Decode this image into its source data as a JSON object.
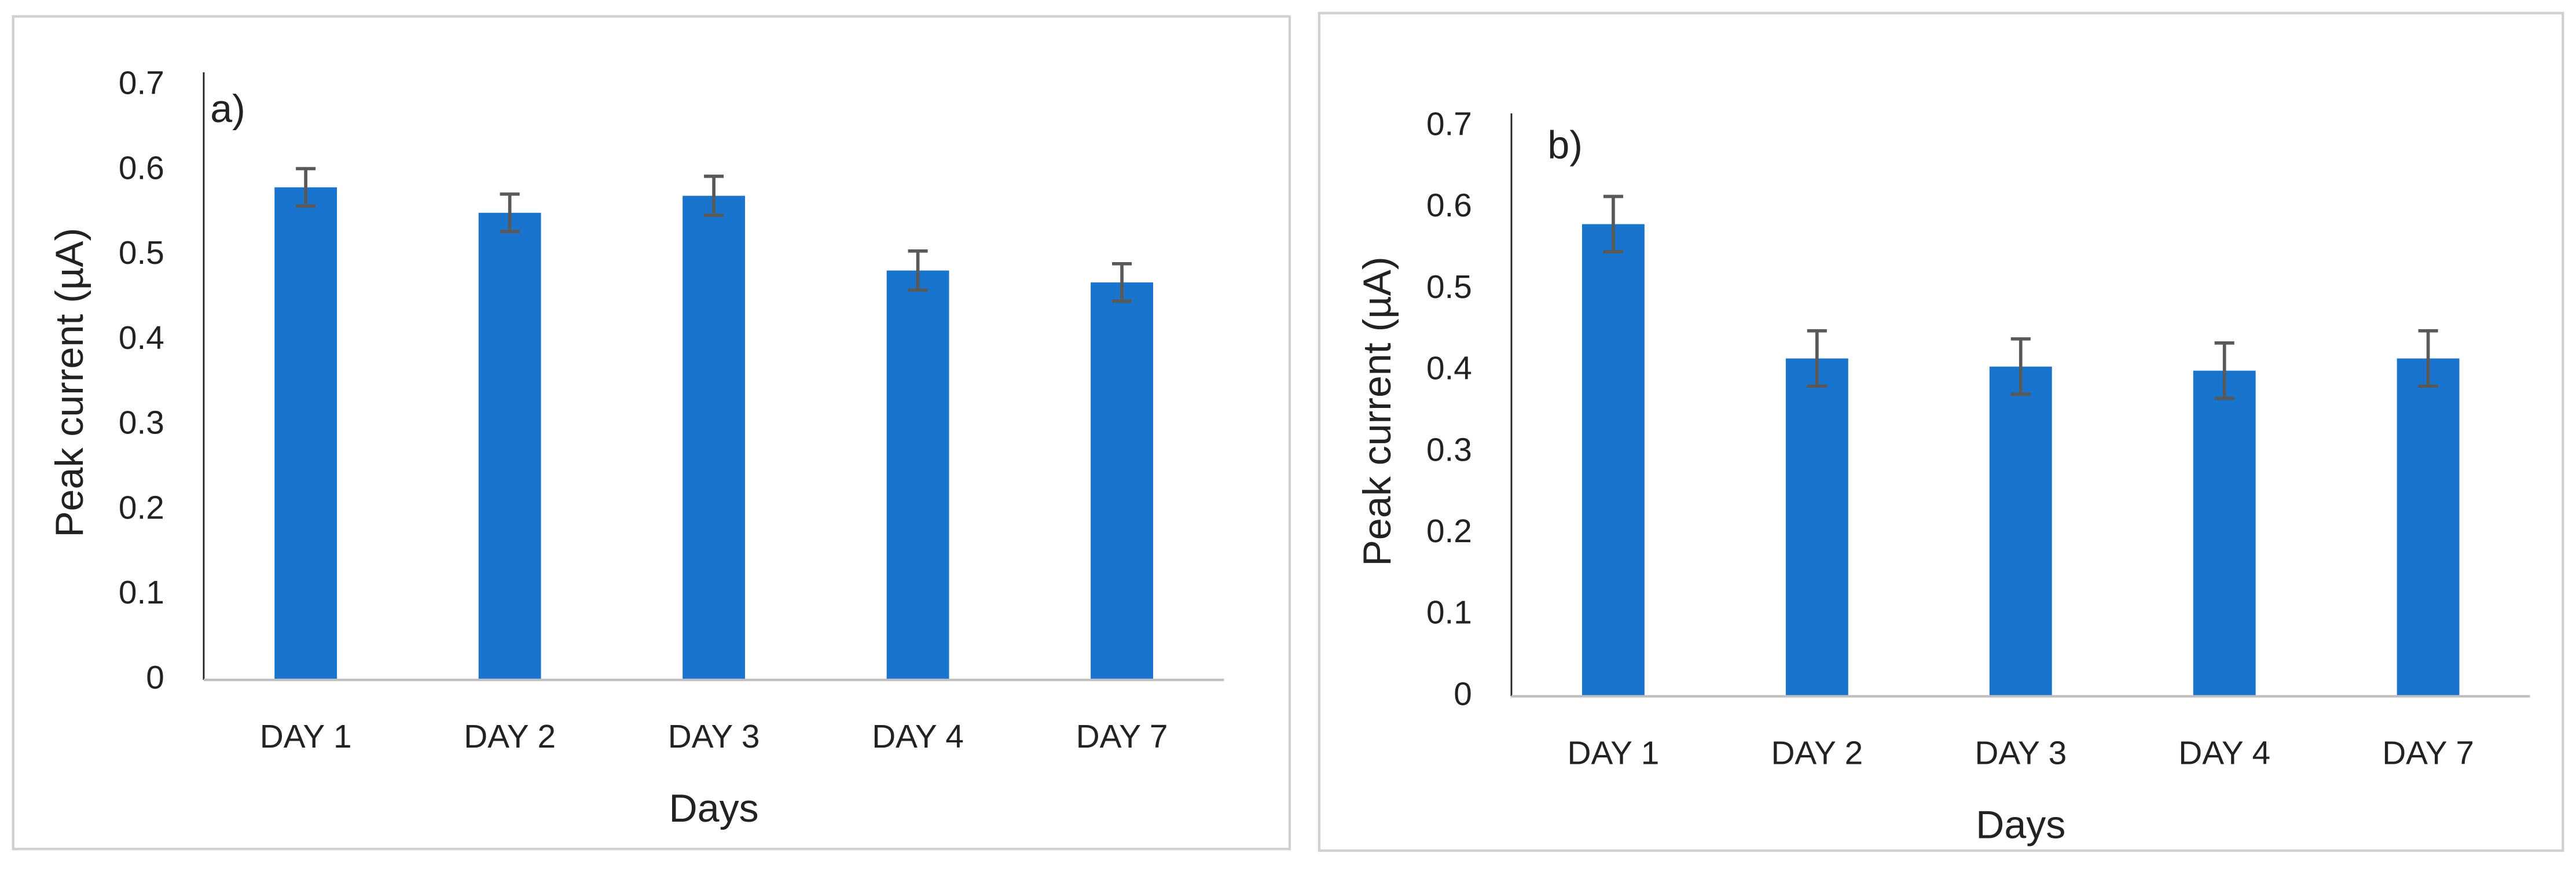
{
  "chart_data": [
    {
      "type": "bar",
      "annotation": "a)",
      "xlabel": "Days",
      "ylabel": "Peak current (µA)",
      "categories": [
        "DAY 1",
        "DAY 2",
        "DAY 3",
        "DAY 4",
        "DAY 7"
      ],
      "values": [
        0.58,
        0.55,
        0.57,
        0.482,
        0.468
      ],
      "errors": [
        0.022,
        0.022,
        0.023,
        0.023,
        0.022
      ],
      "color": "#1874cd",
      "error_color": "#595959",
      "ylim": [
        0,
        0.7
      ],
      "yticks": [
        0,
        0.1,
        0.2,
        0.3,
        0.4,
        0.5,
        0.6,
        0.7
      ],
      "grid": false
    },
    {
      "type": "bar",
      "annotation": "b)",
      "xlabel": "Days",
      "ylabel": "Peak current (µA)",
      "categories": [
        "DAY 1",
        "DAY 2",
        "DAY 3",
        "DAY 4",
        "DAY 7"
      ],
      "values": [
        0.58,
        0.415,
        0.405,
        0.4,
        0.415
      ],
      "errors": [
        0.034,
        0.034,
        0.034,
        0.034,
        0.034
      ],
      "color": "#1874cd",
      "error_color": "#595959",
      "ylim": [
        0,
        0.7
      ],
      "yticks": [
        0,
        0.1,
        0.2,
        0.3,
        0.4,
        0.5,
        0.6,
        0.7
      ],
      "grid": false
    }
  ]
}
